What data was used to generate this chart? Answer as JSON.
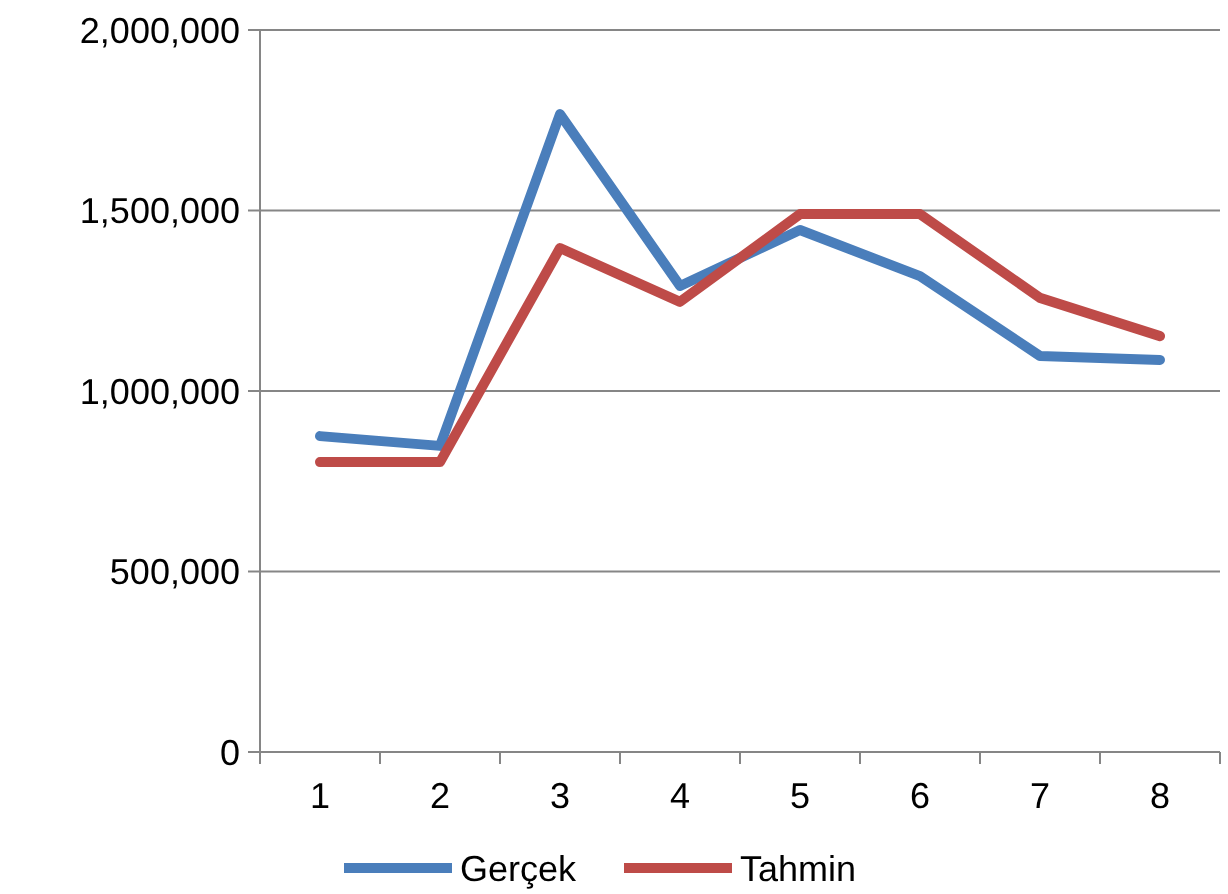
{
  "chart_data": {
    "type": "line",
    "categories": [
      "1",
      "2",
      "3",
      "4",
      "5",
      "6",
      "7",
      "8"
    ],
    "series": [
      {
        "name": "Gerçek",
        "color": "#4a7ebb",
        "values": [
          875000,
          848000,
          1767000,
          1291000,
          1446000,
          1318000,
          1097000,
          1086000
        ]
      },
      {
        "name": "Tahmin",
        "color": "#be4b48",
        "values": [
          803000,
          803000,
          1396000,
          1247000,
          1490000,
          1490000,
          1258000,
          1152000
        ]
      }
    ],
    "ylim": [
      0,
      2000000
    ],
    "yticks": [
      {
        "value": 0,
        "label": "0"
      },
      {
        "value": 500000,
        "label": "500,000"
      },
      {
        "value": 1000000,
        "label": "1,000,000"
      },
      {
        "value": 1500000,
        "label": "1,500,000"
      },
      {
        "value": 2000000,
        "label": "2,000,000"
      }
    ],
    "grid": "y",
    "legend": "bottom",
    "marker": "none",
    "line_style": "solid"
  }
}
